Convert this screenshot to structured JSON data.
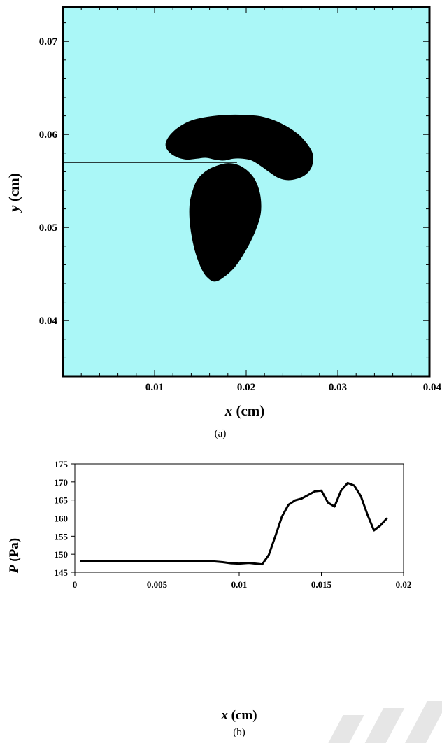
{
  "colors": {
    "domain_fill": "#aaf7f7",
    "bubble_fill": "#000000",
    "line": "#000000"
  },
  "chart_data": [
    {
      "panel": "(a)",
      "type": "scatter",
      "description_shown": "bubble shapes in domain",
      "xlabel_var": "x",
      "xlabel_unit": " (cm)",
      "ylabel_var": "y",
      "ylabel_unit": " (cm)",
      "xlim": [
        0.0,
        0.04
      ],
      "ylim": [
        0.034,
        0.0737
      ],
      "x_ticks": [
        "0.01",
        "0.02",
        "0.03",
        "0.04"
      ],
      "x_tick_values": [
        0.01,
        0.02,
        0.03,
        0.04
      ],
      "y_ticks": [
        "0.04",
        "0.05",
        "0.06",
        "0.07"
      ],
      "y_tick_values": [
        0.04,
        0.05,
        0.06,
        0.07
      ],
      "probe_line": {
        "x": [
          0.0,
          0.019
        ],
        "y": [
          0.057,
          0.057
        ]
      },
      "bubbles": [
        {
          "name": "upper bubble",
          "x": [
            0.0112,
            0.0115,
            0.0125,
            0.014,
            0.0158,
            0.0178,
            0.0198,
            0.0218,
            0.0238,
            0.0256,
            0.0268,
            0.0273,
            0.0271,
            0.0262,
            0.0248,
            0.0236,
            0.0226,
            0.0216,
            0.0206,
            0.0196,
            0.0186,
            0.0176,
            0.0166,
            0.0156,
            0.0146,
            0.0136,
            0.0126,
            0.0117
          ],
          "y": [
            0.0588,
            0.0597,
            0.0607,
            0.0615,
            0.0619,
            0.0621,
            0.0621,
            0.0619,
            0.0612,
            0.0601,
            0.0588,
            0.0577,
            0.0564,
            0.0555,
            0.0551,
            0.0553,
            0.0559,
            0.0566,
            0.0572,
            0.0574,
            0.0574,
            0.0572,
            0.0573,
            0.0575,
            0.0574,
            0.0573,
            0.0575,
            0.058
          ]
        },
        {
          "name": "lower bubble",
          "x": [
            0.0173,
            0.0158,
            0.0147,
            0.0141,
            0.0138,
            0.0139,
            0.0144,
            0.0151,
            0.0158,
            0.0166,
            0.0176,
            0.0188,
            0.02,
            0.021,
            0.0216,
            0.0215,
            0.0208,
            0.0196,
            0.0184
          ],
          "y": [
            0.0568,
            0.0562,
            0.0552,
            0.0538,
            0.0522,
            0.05,
            0.0475,
            0.0456,
            0.0446,
            0.0442,
            0.0447,
            0.0458,
            0.0476,
            0.0496,
            0.0516,
            0.0537,
            0.0554,
            0.0565,
            0.0569
          ]
        }
      ],
      "caption": "(a)"
    },
    {
      "panel": "(b)",
      "type": "line",
      "xlabel_var": "x",
      "xlabel_unit": " (cm)",
      "ylabel_var": "P",
      "ylabel_unit": " (Pa)",
      "xlim": [
        0,
        0.02
      ],
      "ylim": [
        145,
        175
      ],
      "x_ticks": [
        "0",
        "0.005",
        "0.01",
        "0.015",
        "0.02"
      ],
      "x_tick_values": [
        0,
        0.005,
        0.01,
        0.015,
        0.02
      ],
      "y_ticks": [
        "145",
        "150",
        "155",
        "160",
        "165",
        "170",
        "175"
      ],
      "y_tick_values": [
        145,
        150,
        155,
        160,
        165,
        170,
        175
      ],
      "grid": false,
      "series": [
        {
          "x": [
            0.0003,
            0.001,
            0.002,
            0.003,
            0.004,
            0.005,
            0.006,
            0.007,
            0.008,
            0.0085,
            0.009,
            0.0095,
            0.01,
            0.0106,
            0.011,
            0.0114,
            0.0118,
            0.0122,
            0.0126,
            0.013,
            0.0134,
            0.0138,
            0.0142,
            0.0146,
            0.015,
            0.0154,
            0.0158,
            0.0162,
            0.0166,
            0.017,
            0.0174,
            0.0178,
            0.0182,
            0.0186,
            0.019
          ],
          "y": [
            148.1,
            148.0,
            148.0,
            148.1,
            148.1,
            148.0,
            148.0,
            148.0,
            148.1,
            148.0,
            147.8,
            147.5,
            147.4,
            147.6,
            147.4,
            147.2,
            149.8,
            155.0,
            160.4,
            163.7,
            164.9,
            165.4,
            166.4,
            167.4,
            167.6,
            164.3,
            163.2,
            167.6,
            169.7,
            169.0,
            166.1,
            161.0,
            156.6,
            158.0,
            160.0
          ]
        }
      ],
      "caption": "(b)"
    }
  ]
}
